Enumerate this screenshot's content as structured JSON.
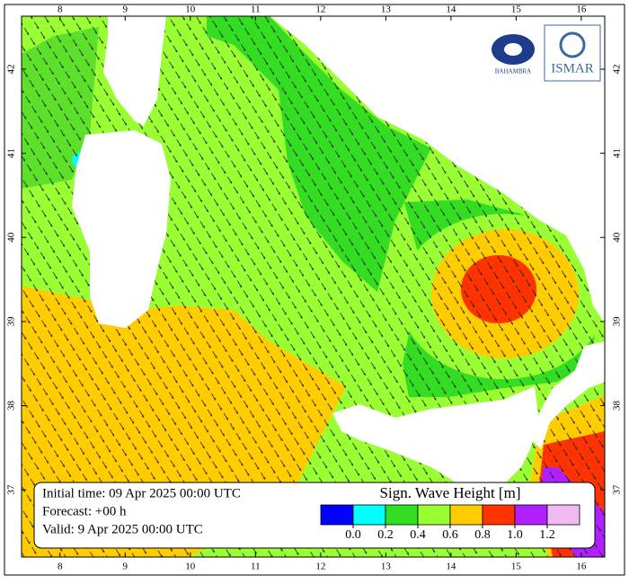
{
  "map": {
    "xlim": [
      7.41,
      16.36
    ],
    "ylim": [
      36.2,
      42.63
    ],
    "xticks": [
      8,
      9,
      10,
      11,
      12,
      13,
      14,
      15,
      16
    ],
    "yticks": [
      37,
      38,
      39,
      40,
      41,
      42
    ]
  },
  "logos": {
    "left": "BAHAMBRA",
    "right": "ISMAR"
  },
  "info": {
    "initial": "Initial time: 09 Apr 2025 00:00 UTC",
    "forecast": "Forecast: +00 h",
    "valid": "Valid:  9 Apr 2025 00:00 UTC"
  },
  "colorbar": {
    "title": "Sign. Wave Height [m]",
    "colors": [
      "#0000ff",
      "#00ffff",
      "#33dd22",
      "#99ff33",
      "#ffcc00",
      "#ff3300",
      "#b020ff",
      "#f2b8f2"
    ],
    "ticks": [
      {
        "value": 0,
        "label": "0.0"
      },
      {
        "value": 0.2,
        "label": "0.2"
      },
      {
        "value": 0.4,
        "label": "0.4"
      },
      {
        "value": 0.6,
        "label": "0.6"
      },
      {
        "value": 0.8,
        "label": "0.8"
      },
      {
        "value": 1,
        "label": "1.0"
      },
      {
        "value": 1.2,
        "label": "1.2"
      }
    ]
  }
}
